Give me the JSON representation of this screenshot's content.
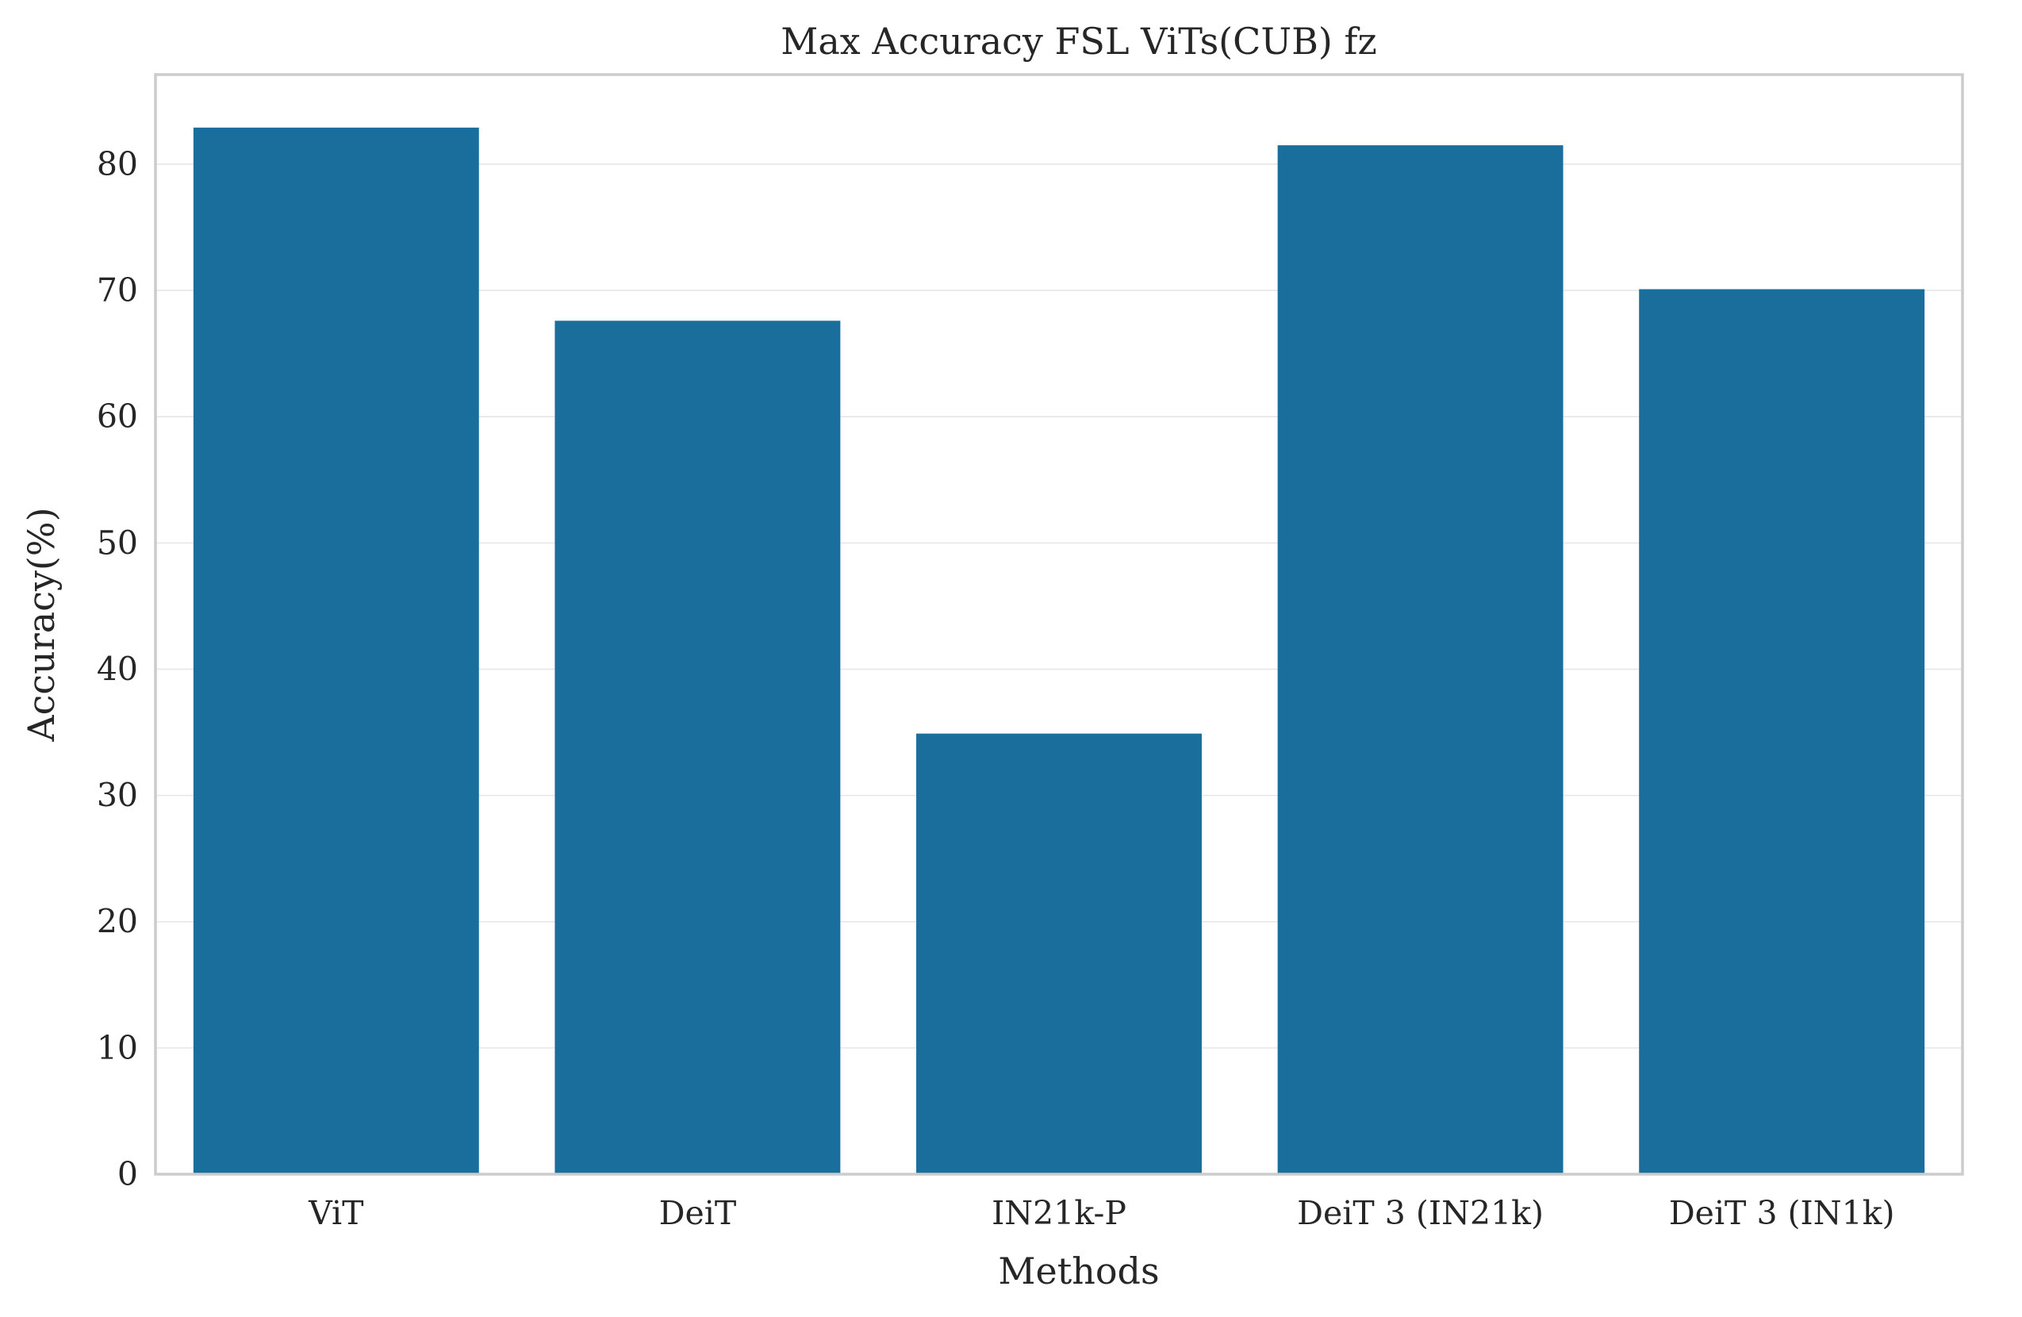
{
  "chart_data": {
    "type": "bar",
    "title": "Max Accuracy FSL ViTs(CUB) fz",
    "xlabel": "Methods",
    "ylabel": "Accuracy(%)",
    "categories": [
      "ViT",
      "DeiT",
      "IN21k-P",
      "DeiT 3 (IN21k)",
      "DeiT 3 (IN1k)"
    ],
    "values": [
      82.9,
      67.6,
      34.9,
      81.5,
      70.1
    ],
    "ylim": [
      0,
      87.1
    ],
    "yticks": [
      0,
      10,
      20,
      30,
      40,
      50,
      60,
      70,
      80
    ],
    "grid": "horizontal",
    "bar_color": "#1a6e9c"
  }
}
